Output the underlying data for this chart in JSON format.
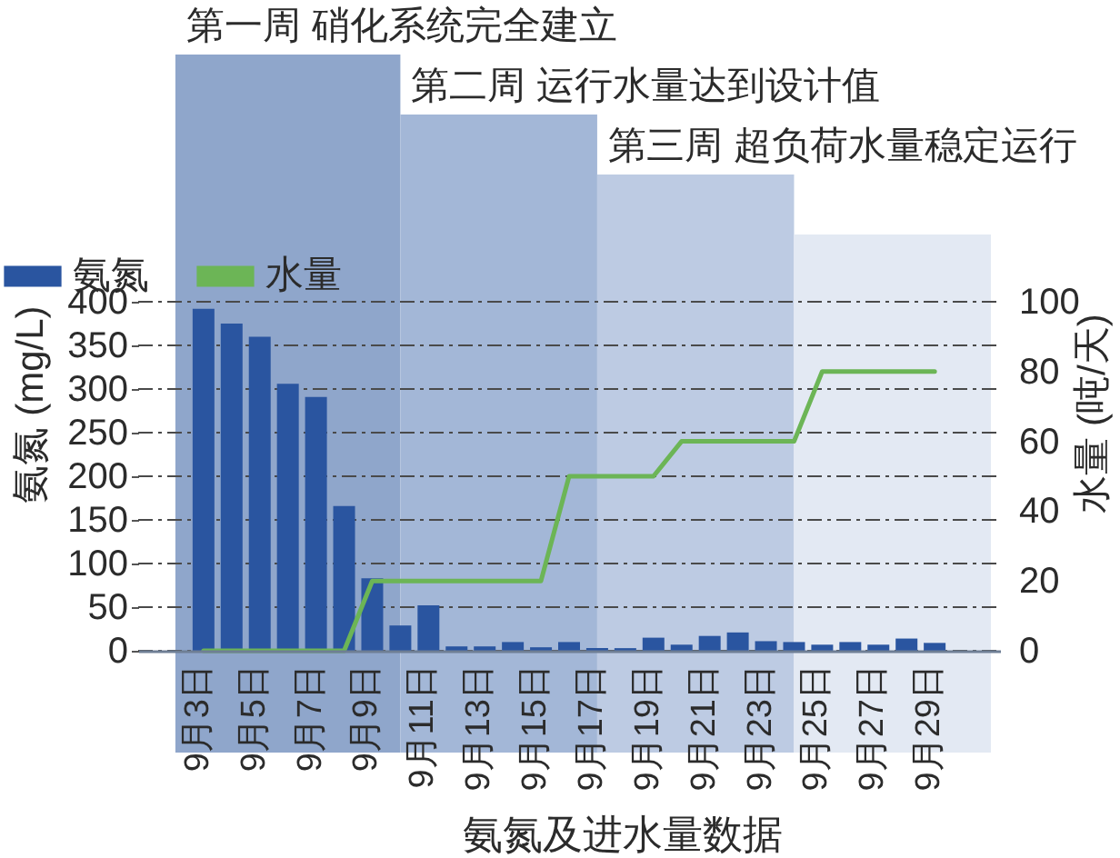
{
  "chart_data": {
    "type": "bar",
    "x": [
      "--09-03",
      "--09-04",
      "--09-05",
      "--09-06",
      "--09-07",
      "--09-08",
      "--09-09",
      "--09-10",
      "--09-11",
      "--09-12",
      "--09-13",
      "--09-14",
      "--09-15",
      "--09-16",
      "--09-17",
      "--09-18",
      "--09-19",
      "--09-20",
      "--09-21",
      "--09-22",
      "--09-23",
      "--09-24",
      "--09-25",
      "--09-26",
      "--09-27",
      "--09-28",
      "--09-29"
    ],
    "xlim": [
      "--09-01",
      "--10-01"
    ],
    "xticks": [
      {
        "value": "--09-03",
        "label": "9月3日"
      },
      {
        "value": "--09-05",
        "label": "9月5日"
      },
      {
        "value": "--09-07",
        "label": "9月7日"
      },
      {
        "value": "--09-09",
        "label": "9月9日"
      },
      {
        "value": "--09-11",
        "label": "9月11日"
      },
      {
        "value": "--09-13",
        "label": "9月13日"
      },
      {
        "value": "--09-15",
        "label": "9月15日"
      },
      {
        "value": "--09-17",
        "label": "9月17日"
      },
      {
        "value": "--09-19",
        "label": "9月19日"
      },
      {
        "value": "--09-21",
        "label": "9月21日"
      },
      {
        "value": "--09-23",
        "label": "9月23日"
      },
      {
        "value": "--09-25",
        "label": "9月25日"
      },
      {
        "value": "--09-27",
        "label": "9月27日"
      },
      {
        "value": "--09-29",
        "label": "9月29日"
      }
    ],
    "xlabel": "氨氮及进水量数据",
    "ylabel": "氨氮 (mg/L)",
    "y2label": "水量 (吨/天)",
    "ylim": [
      0,
      400
    ],
    "yticks": [
      0,
      50,
      100,
      150,
      200,
      250,
      300,
      350,
      400
    ],
    "y2lim": [
      0,
      100
    ],
    "y2ticks": [
      0,
      20,
      40,
      60,
      80,
      100
    ],
    "series": [
      {
        "name": "氨氮",
        "color": "#2a55a0",
        "values": [
          392,
          375,
          360,
          306,
          291,
          166,
          83,
          29,
          52,
          5,
          5,
          10,
          4,
          10,
          3,
          3,
          15,
          7,
          17,
          21,
          11,
          10,
          7,
          10,
          7,
          14,
          9
        ]
      },
      {
        "name": "水量",
        "type": "line",
        "axis": "y2",
        "color": "#6cb556",
        "values": [
          0,
          0,
          0,
          0,
          0,
          0,
          20,
          20,
          20,
          20,
          20,
          20,
          20,
          50,
          50,
          50,
          50,
          60,
          60,
          60,
          60,
          60,
          80,
          80,
          80,
          80,
          80
        ]
      }
    ],
    "bands": [
      {
        "axis": "x",
        "from": "--09-02",
        "to": "--09-10",
        "color": "#8fa6cb"
      },
      {
        "axis": "x",
        "from": "--09-10",
        "to": "--09-17",
        "color": "#a3b7d7"
      },
      {
        "axis": "x",
        "from": "--09-17",
        "to": "--09-24",
        "color": "#bdcbe3"
      },
      {
        "axis": "x",
        "from": "--09-24",
        "to": "--10-01",
        "color": "#e3e9f3"
      }
    ],
    "annotations": [
      "第一周 硝化系统完全建立",
      "第二周 运行水量达到设计值",
      "第三周 超负荷水量稳定运行"
    ],
    "grid": "y",
    "legend": "top left"
  }
}
